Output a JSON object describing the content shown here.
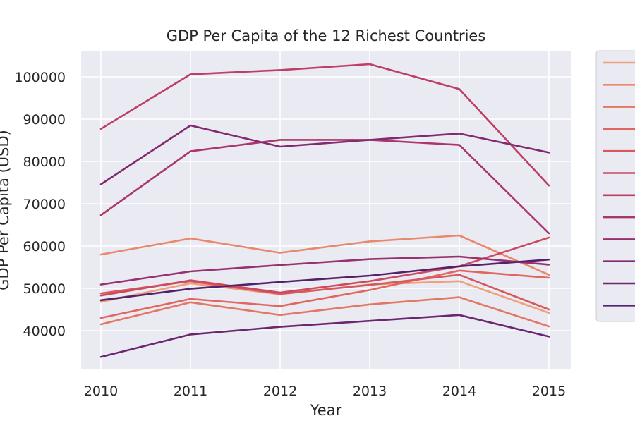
{
  "chart_data": {
    "type": "line",
    "title": "GDP Per Capita of the 12 Richest Countries",
    "xlabel": "Year",
    "ylabel": "GDP Per Capita (USD)",
    "x": [
      2010,
      2011,
      2012,
      2013,
      2014,
      2015
    ],
    "ylim": [
      31000,
      106000
    ],
    "yticks": [
      40000,
      50000,
      60000,
      70000,
      80000,
      90000,
      100000
    ],
    "grid": true,
    "legend_position": "outside-right",
    "series": [
      {
        "color": "#eda07a",
        "values": [
          46800,
          51200,
          48600,
          50900,
          51700,
          44200
        ]
      },
      {
        "color": "#e9886c",
        "values": [
          58000,
          61800,
          58400,
          61100,
          62500,
          53200
        ]
      },
      {
        "color": "#e47664",
        "values": [
          41500,
          46700,
          43700,
          46200,
          47900,
          41000
        ]
      },
      {
        "color": "#e0665e",
        "values": [
          43000,
          47500,
          45800,
          49600,
          54200,
          52500
        ]
      },
      {
        "color": "#d6575d",
        "values": [
          48800,
          51700,
          48700,
          50800,
          53200,
          45000
        ]
      },
      {
        "color": "#cb4a5f",
        "values": [
          48300,
          51900,
          49000,
          51700,
          55200,
          62000
        ]
      },
      {
        "color": "#bd3f66",
        "values": [
          87700,
          100600,
          101600,
          103000,
          97100,
          74300
        ]
      },
      {
        "color": "#ab366b",
        "values": [
          67300,
          82400,
          85100,
          85100,
          83900,
          63000
        ]
      },
      {
        "color": "#973170",
        "values": [
          50900,
          54000,
          55500,
          56900,
          57500,
          55600
        ]
      },
      {
        "color": "#812a70",
        "values": [
          74600,
          88500,
          83500,
          85100,
          86600,
          82100
        ]
      },
      {
        "color": "#6b266f",
        "values": [
          33800,
          39100,
          40900,
          42300,
          43700,
          38600
        ]
      },
      {
        "color": "#54216a",
        "values": [
          47200,
          49900,
          51500,
          53000,
          55200,
          56800
        ]
      }
    ]
  }
}
